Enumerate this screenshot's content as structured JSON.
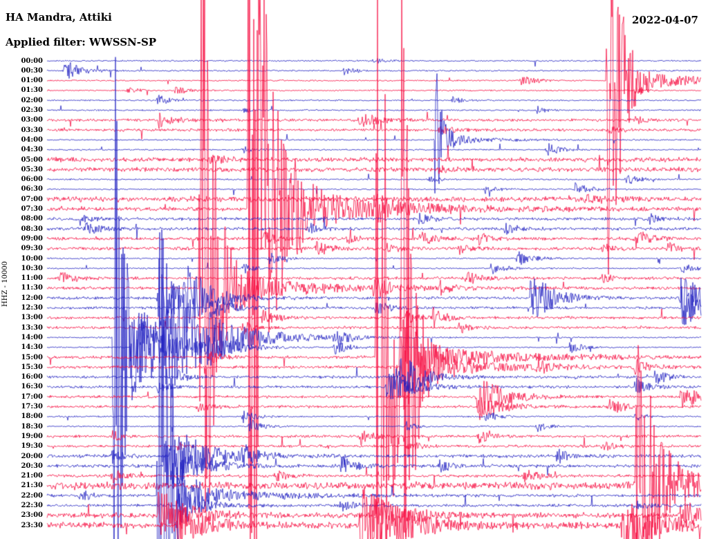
{
  "header": {
    "station_title": "HA Mandra, Attiki",
    "filter_label": "Applied filter: WWSSN-SP",
    "date": "2022-04-07"
  },
  "axis": {
    "scale_label": "HHZ - 10000",
    "time_labels": [
      "00:00",
      "00:30",
      "01:00",
      "01:30",
      "02:00",
      "02:30",
      "03:00",
      "03:30",
      "04:00",
      "04:30",
      "05:00",
      "05:30",
      "06:00",
      "06:30",
      "07:00",
      "07:30",
      "08:00",
      "08:30",
      "09:00",
      "09:30",
      "10:00",
      "10:30",
      "11:00",
      "11:30",
      "12:00",
      "12:30",
      "13:00",
      "13:30",
      "14:00",
      "14:30",
      "15:00",
      "15:30",
      "16:00",
      "16:30",
      "17:00",
      "17:30",
      "18:00",
      "18:30",
      "19:00",
      "19:30",
      "20:00",
      "20:30",
      "21:00",
      "21:30",
      "22:00",
      "22:30",
      "23:00",
      "23:30"
    ]
  },
  "chart_data": {
    "type": "line",
    "subtype": "helicorder-seismogram",
    "title": "HA Mandra, Attiki",
    "subtitle": "Applied filter: WWSSN-SP",
    "date": "2022-04-07",
    "channel": "HHZ",
    "gain_scale": 10000,
    "lines": 48,
    "minutes_per_line": 30,
    "row_labels_ref": "axis.time_labels",
    "grid": false,
    "legend": false,
    "colors": {
      "even_hour_trace": "#1e1ec0",
      "odd_hour_trace": "#f6093d",
      "text": "#000000",
      "background": "#ffffff"
    },
    "color_rule": "both half-hour lines of an hour share one color; even hours blue, odd hours red",
    "noise": {
      "base": 1.0,
      "rows": {
        "6": 1.8,
        "7": 1.8,
        "10": 3,
        "11": 3,
        "14": 3.5,
        "15": 2.5,
        "16": 2,
        "17": 2,
        "18": 2.2,
        "19": 2.2,
        "22": 2,
        "23": 2,
        "24": 1.8,
        "25": 1.8,
        "26": 1.8,
        "27": 1.8,
        "30": 2,
        "31": 2,
        "32": 1.8,
        "33": 1.8,
        "34": 1.8,
        "35": 1.8,
        "38": 1.8,
        "39": 1.8,
        "40": 2.2,
        "41": 2.2,
        "42": 2,
        "43": 5,
        "44": 2,
        "45": 2,
        "46": 3.5,
        "47": 4
      }
    },
    "events_format": "[rowIndex, xFraction(0-1 of 30min line), amplitudePx, decayPx, codaAmpPx(optional), codaDecayPx(optional)]",
    "events": [
      [
        0,
        0.5,
        4,
        15
      ],
      [
        1,
        0.028,
        16,
        20
      ],
      [
        1,
        0.455,
        6,
        15
      ],
      [
        2,
        0.725,
        8,
        20
      ],
      [
        2,
        0.858,
        400,
        15,
        12,
        150
      ],
      [
        3,
        0.124,
        5,
        12
      ],
      [
        3,
        0.197,
        8,
        15
      ],
      [
        3,
        0.9,
        5,
        12
      ],
      [
        4,
        0.17,
        8,
        15
      ],
      [
        4,
        0.62,
        5,
        12
      ],
      [
        5,
        0.3,
        5,
        12
      ],
      [
        5,
        0.75,
        6,
        12
      ],
      [
        6,
        0.171,
        12,
        20
      ],
      [
        6,
        0.478,
        12,
        25
      ],
      [
        6,
        0.9,
        6,
        15
      ],
      [
        7,
        0.6,
        8,
        20
      ],
      [
        7,
        0.86,
        6,
        15
      ],
      [
        8,
        0.594,
        110,
        10,
        8,
        60
      ],
      [
        9,
        0.3,
        6,
        12
      ],
      [
        9,
        0.765,
        10,
        18
      ],
      [
        10,
        0.25,
        6,
        20
      ],
      [
        11,
        0.6,
        5,
        15
      ],
      [
        12,
        0.585,
        6,
        12
      ],
      [
        12,
        0.886,
        9,
        15
      ],
      [
        13,
        0.67,
        7,
        14
      ],
      [
        13,
        0.807,
        10,
        18
      ],
      [
        14,
        0.82,
        8,
        20
      ],
      [
        15,
        0.309,
        800,
        22,
        30,
        150
      ],
      [
        15,
        0.38,
        16,
        40
      ],
      [
        15,
        0.5,
        12,
        25
      ],
      [
        16,
        0.05,
        8,
        15
      ],
      [
        16,
        0.57,
        9,
        15
      ],
      [
        16,
        0.92,
        8,
        15
      ],
      [
        17,
        0.06,
        10,
        18
      ],
      [
        17,
        0.4,
        8,
        15
      ],
      [
        17,
        0.7,
        9,
        15
      ],
      [
        18,
        0.33,
        10,
        18
      ],
      [
        18,
        0.46,
        8,
        14
      ],
      [
        18,
        0.57,
        12,
        18
      ],
      [
        18,
        0.66,
        9,
        14
      ],
      [
        18,
        0.9,
        13,
        20
      ],
      [
        19,
        0.41,
        12,
        18
      ],
      [
        19,
        0.52,
        8,
        14
      ],
      [
        19,
        0.63,
        8,
        14
      ],
      [
        19,
        0.85,
        7,
        12
      ],
      [
        19,
        0.95,
        9,
        15
      ],
      [
        20,
        0.34,
        9,
        15
      ],
      [
        20,
        0.72,
        12,
        20
      ],
      [
        21,
        0.3,
        8,
        14
      ],
      [
        21,
        0.68,
        11,
        18
      ],
      [
        21,
        0.97,
        9,
        15
      ],
      [
        22,
        0.02,
        10,
        18
      ],
      [
        22,
        0.64,
        12,
        18
      ],
      [
        22,
        0.85,
        8,
        14
      ],
      [
        23,
        0.235,
        650,
        16,
        25,
        120
      ],
      [
        23,
        0.5,
        14,
        20
      ],
      [
        23,
        0.6,
        10,
        16
      ],
      [
        24,
        0.171,
        60,
        25
      ],
      [
        24,
        0.21,
        40,
        40
      ],
      [
        24,
        0.74,
        40,
        30
      ],
      [
        24,
        0.97,
        45,
        25
      ],
      [
        25,
        0.25,
        15,
        30
      ],
      [
        25,
        0.5,
        12,
        20
      ],
      [
        25,
        0.97,
        30,
        30
      ],
      [
        26,
        0.33,
        12,
        18
      ],
      [
        26,
        0.55,
        10,
        15
      ],
      [
        26,
        0.59,
        14,
        18
      ],
      [
        27,
        0.3,
        10,
        15
      ],
      [
        27,
        0.63,
        9,
        14
      ],
      [
        28,
        0.103,
        600,
        12,
        20,
        80
      ],
      [
        28,
        0.18,
        110,
        60
      ],
      [
        28,
        0.44,
        14,
        18
      ],
      [
        29,
        0.13,
        80,
        50
      ],
      [
        29,
        0.25,
        20,
        25
      ],
      [
        29,
        0.44,
        12,
        16
      ],
      [
        29,
        0.8,
        10,
        15
      ],
      [
        30,
        0.505,
        700,
        18,
        25,
        130
      ],
      [
        30,
        0.25,
        10,
        15
      ],
      [
        31,
        0.542,
        600,
        14,
        20,
        100
      ],
      [
        31,
        0.75,
        10,
        15
      ],
      [
        31,
        0.9,
        12,
        16
      ],
      [
        32,
        0.2,
        10,
        15
      ],
      [
        32,
        0.54,
        35,
        30
      ],
      [
        32,
        0.93,
        12,
        16
      ],
      [
        33,
        0.17,
        10,
        14
      ],
      [
        33,
        0.52,
        25,
        35
      ],
      [
        33,
        0.9,
        14,
        18
      ],
      [
        34,
        0.658,
        35,
        35
      ],
      [
        34,
        0.97,
        18,
        25
      ],
      [
        35,
        0.23,
        10,
        15
      ],
      [
        35,
        0.66,
        20,
        30
      ],
      [
        35,
        0.86,
        14,
        18
      ],
      [
        36,
        0.3,
        10,
        15
      ],
      [
        36,
        0.67,
        10,
        15
      ],
      [
        36,
        0.9,
        8,
        12
      ],
      [
        37,
        0.31,
        12,
        16
      ],
      [
        37,
        0.55,
        8,
        12
      ],
      [
        37,
        0.75,
        9,
        14
      ],
      [
        38,
        0.1,
        9,
        14
      ],
      [
        38,
        0.48,
        11,
        16
      ],
      [
        38,
        0.66,
        12,
        16
      ],
      [
        39,
        0.2,
        8,
        12
      ],
      [
        39,
        0.55,
        10,
        15
      ],
      [
        39,
        0.85,
        9,
        14
      ],
      [
        40,
        0.1,
        10,
        14
      ],
      [
        40,
        0.19,
        50,
        45
      ],
      [
        40,
        0.3,
        14,
        18
      ],
      [
        40,
        0.78,
        12,
        16
      ],
      [
        41,
        0.18,
        40,
        40
      ],
      [
        41,
        0.45,
        15,
        18
      ],
      [
        41,
        0.6,
        10,
        14
      ],
      [
        42,
        0.1,
        12,
        16
      ],
      [
        42,
        0.35,
        10,
        14
      ],
      [
        42,
        0.73,
        12,
        16
      ],
      [
        43,
        0.902,
        250,
        25,
        15,
        120
      ],
      [
        44,
        0.05,
        10,
        14
      ],
      [
        44,
        0.171,
        700,
        14,
        20,
        100
      ],
      [
        45,
        0.2,
        25,
        30
      ],
      [
        45,
        0.45,
        12,
        16
      ],
      [
        45,
        0.9,
        10,
        14
      ],
      [
        46,
        0.17,
        40,
        40
      ],
      [
        46,
        0.5,
        30,
        40
      ],
      [
        46,
        0.97,
        25,
        30
      ],
      [
        47,
        0.2,
        30,
        40
      ],
      [
        47,
        0.48,
        60,
        60
      ],
      [
        47,
        0.88,
        40,
        50
      ]
    ]
  }
}
